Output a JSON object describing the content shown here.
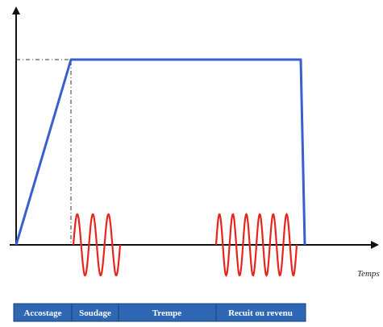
{
  "axis": {
    "x_label": "Temps"
  },
  "phases": [
    {
      "label": "Accostage"
    },
    {
      "label": "Soudage"
    },
    {
      "label": "Trempe"
    },
    {
      "label": "Recuit ou revenu"
    }
  ],
  "colors": {
    "force_curve": "#3a5fcd",
    "current_wave": "#e8251d",
    "axis": "#111111",
    "phase_bar": "#2e68b4",
    "phase_border": "#1a3f75"
  },
  "chart_data": {
    "type": "line",
    "series": [
      {
        "values": [
          0,
          1,
          1,
          1,
          0
        ]
      },
      {
        "values": [
          3,
          6
        ]
      }
    ]
  }
}
